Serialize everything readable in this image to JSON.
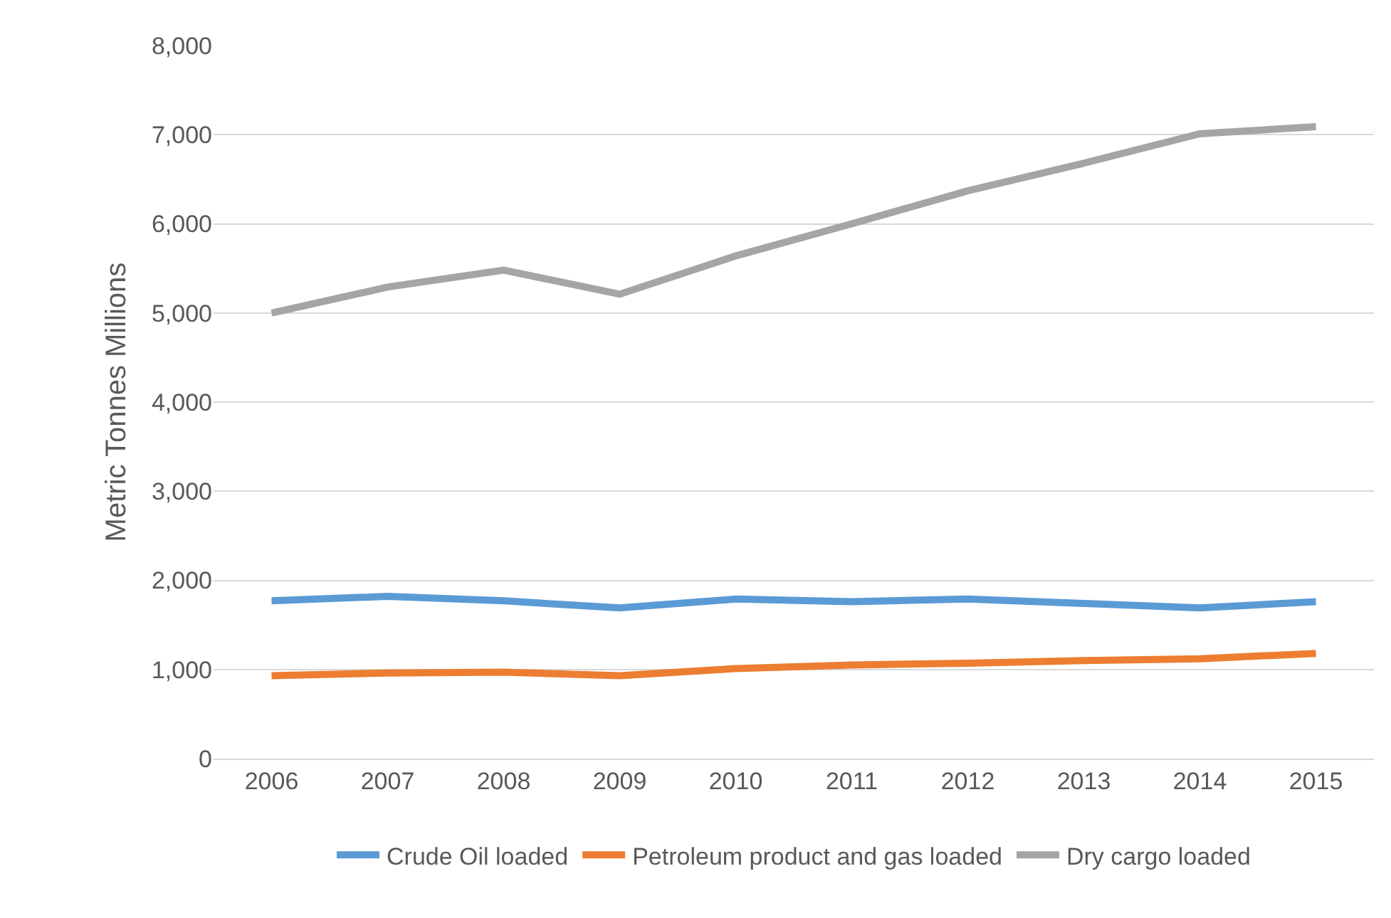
{
  "chart_data": {
    "type": "line",
    "ylabel": "Metric Tonnes Millions",
    "categories": [
      "2006",
      "2007",
      "2008",
      "2009",
      "2010",
      "2011",
      "2012",
      "2013",
      "2014",
      "2015"
    ],
    "series": [
      {
        "name": "Crude Oil loaded",
        "color": "#5b9bd5",
        "values": [
          1770,
          1820,
          1770,
          1690,
          1790,
          1760,
          1790,
          1740,
          1690,
          1760
        ]
      },
      {
        "name": "Petroleum product and gas loaded",
        "color": "#ed7d31",
        "values": [
          930,
          960,
          970,
          930,
          1010,
          1050,
          1070,
          1100,
          1120,
          1180
        ]
      },
      {
        "name": "Dry cargo loaded",
        "color": "#a5a5a5",
        "values": [
          5000,
          5290,
          5480,
          5210,
          5640,
          6000,
          6370,
          6680,
          7010,
          7090
        ]
      }
    ],
    "ylim": [
      0,
      8000
    ],
    "yticks": [
      0,
      {
        "value": 1000,
        "label": "1,000"
      },
      {
        "value": 2000,
        "label": "2,000"
      },
      {
        "value": 3000,
        "label": "3,000"
      },
      {
        "value": 4000,
        "label": "4,000"
      },
      {
        "value": 5000,
        "label": "5,000"
      },
      {
        "value": 6000,
        "label": "6,000"
      },
      {
        "value": 7000,
        "label": "7,000"
      },
      {
        "value": 8000,
        "label": "8,000"
      }
    ],
    "grid": "y",
    "legend": "bottom",
    "marker": "none",
    "line_style": "solid"
  }
}
